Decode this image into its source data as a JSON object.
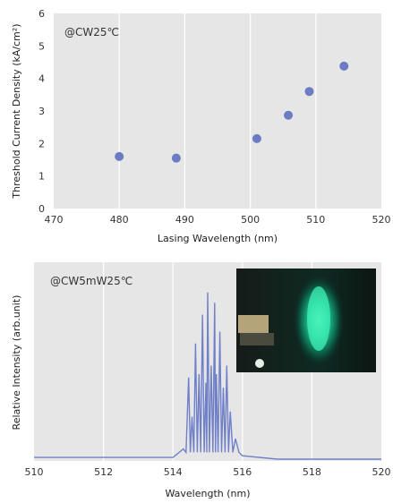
{
  "chart_data": [
    {
      "type": "scatter",
      "annotation": "@CW25℃",
      "xlabel": "Lasing Wavelength  (nm)",
      "ylabel": "Threshold Current Density (kA/cm²)",
      "xlim": [
        470,
        520
      ],
      "ylim": [
        0,
        6
      ],
      "x_ticks": [
        "470",
        "480",
        "490",
        "500",
        "510",
        "520"
      ],
      "y_ticks": [
        "0",
        "1",
        "2",
        "3",
        "4",
        "5",
        "6"
      ],
      "grid": "vertical",
      "point_color": "#6b7cc2",
      "series": [
        {
          "x": [
            480,
            488.7,
            501,
            505.8,
            509,
            514.3
          ],
          "y": [
            1.6,
            1.55,
            2.15,
            2.87,
            3.6,
            4.38
          ]
        }
      ]
    },
    {
      "type": "line",
      "annotation": "@CW5mW25℃",
      "xlabel": "Wavelength  (nm)",
      "ylabel": "Relative Intensity  (arb.unit)",
      "xlim": [
        510,
        520
      ],
      "x_ticks": [
        "510",
        "512",
        "514",
        "516",
        "518",
        "520"
      ],
      "grid": "vertical",
      "line_color": "#7080c8",
      "inset": "photo of green laser emission spot",
      "series": [
        {
          "x": [
            510,
            511,
            512,
            513,
            514,
            514.3,
            514.45,
            514.55,
            514.65,
            514.75,
            514.85,
            514.95,
            515.0,
            515.1,
            515.2,
            515.25,
            515.35,
            515.45,
            515.55,
            515.65,
            515.8,
            516.0,
            517,
            520
          ],
          "y": [
            0.01,
            0.01,
            0.01,
            0.01,
            0.01,
            0.06,
            0.48,
            0.25,
            0.68,
            0.5,
            0.85,
            0.45,
            0.98,
            0.55,
            0.92,
            0.5,
            0.75,
            0.42,
            0.55,
            0.28,
            0.12,
            0.02,
            0.0,
            0.0
          ]
        }
      ]
    }
  ]
}
